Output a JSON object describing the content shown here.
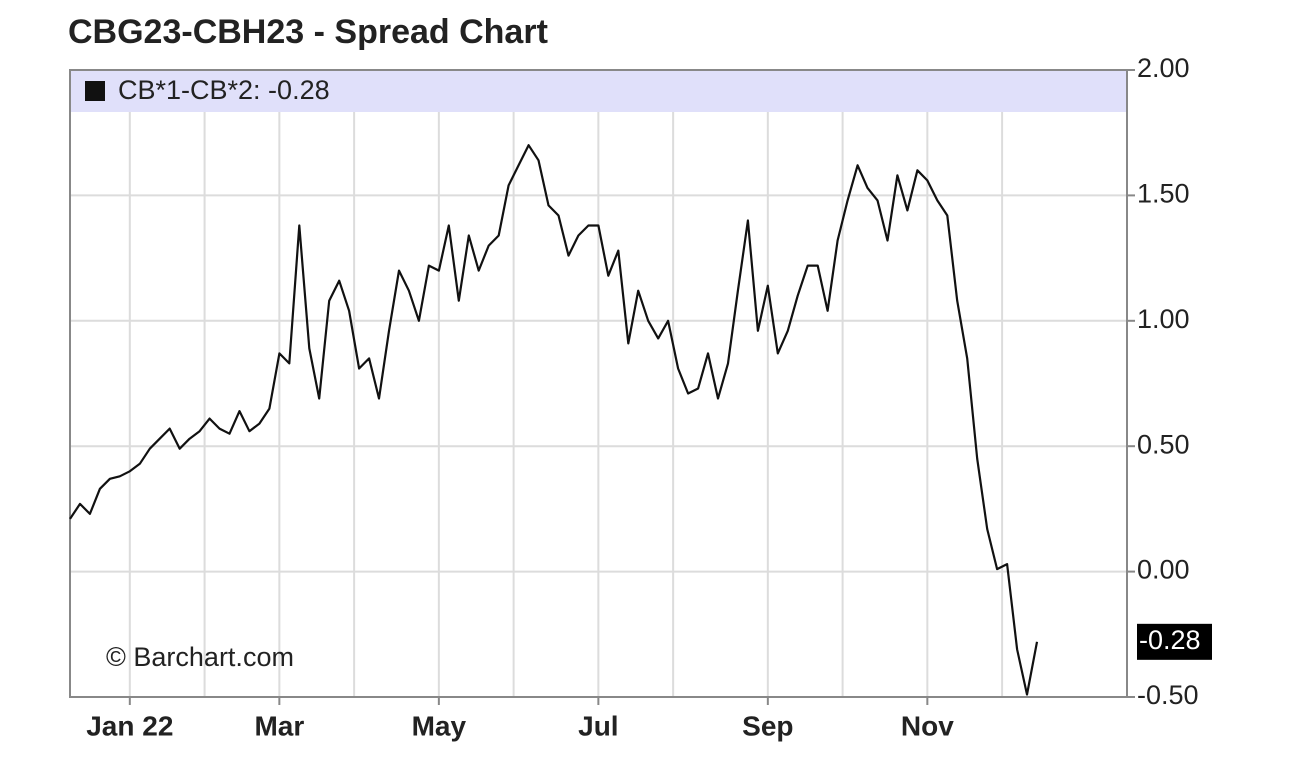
{
  "chart_data": {
    "type": "line",
    "title": "CBG23-CBH23 - Spread Chart",
    "watermark": "© Barchart.com",
    "legend_background": "#e0e0fa",
    "current_value_label": "-0.28",
    "grid": true,
    "categories": [
      null,
      null,
      null,
      null,
      null,
      null,
      "Jan 22",
      null,
      null,
      null,
      null,
      null,
      null,
      null,
      null,
      null,
      null,
      null,
      null,
      null,
      null,
      "Mar",
      null,
      null,
      null,
      null,
      null,
      null,
      null,
      null,
      null,
      null,
      null,
      null,
      null,
      null,
      null,
      "May",
      null,
      null,
      null,
      null,
      null,
      null,
      null,
      null,
      null,
      null,
      null,
      null,
      null,
      null,
      null,
      "Jul",
      null,
      null,
      null,
      null,
      null,
      null,
      null,
      null,
      null,
      null,
      null,
      null,
      null,
      null,
      null,
      null,
      "Sep",
      null,
      null,
      null,
      null,
      null,
      null,
      null,
      null,
      null,
      null,
      null,
      null,
      null,
      null,
      null,
      "Nov",
      null,
      null,
      null,
      null,
      null,
      null,
      null,
      null,
      null,
      null,
      null
    ],
    "series": [
      {
        "name": "CB*1-CB*2: -0.28",
        "color": "#111111",
        "values": [
          0.21,
          0.27,
          0.23,
          0.33,
          0.37,
          0.38,
          0.4,
          0.43,
          0.49,
          0.53,
          0.57,
          0.49,
          0.53,
          0.56,
          0.61,
          0.57,
          0.55,
          0.64,
          0.56,
          0.59,
          0.65,
          0.87,
          0.83,
          1.38,
          0.89,
          0.69,
          1.08,
          1.16,
          1.04,
          0.81,
          0.85,
          0.69,
          0.96,
          1.2,
          1.12,
          1.0,
          1.22,
          1.2,
          1.38,
          1.08,
          1.34,
          1.2,
          1.3,
          1.34,
          1.54,
          1.62,
          1.7,
          1.64,
          1.46,
          1.42,
          1.26,
          1.34,
          1.38,
          1.38,
          1.18,
          1.28,
          0.91,
          1.12,
          1.0,
          0.93,
          1.0,
          0.81,
          0.71,
          0.73,
          0.87,
          0.69,
          0.83,
          1.12,
          1.4,
          0.96,
          1.14,
          0.87,
          0.96,
          1.1,
          1.22,
          1.22,
          1.04,
          1.32,
          1.48,
          1.62,
          1.53,
          1.48,
          1.32,
          1.58,
          1.44,
          1.6,
          1.56,
          1.48,
          1.42,
          1.08,
          0.85,
          0.45,
          0.17,
          0.01,
          0.03,
          -0.31,
          -0.49,
          -0.28
        ]
      }
    ],
    "ylim": [
      -0.5,
      2.0
    ],
    "yticks": [
      {
        "value": -0.5,
        "label": "-0.50"
      },
      {
        "value": 0,
        "label": "0.00"
      },
      {
        "value": 0.5,
        "label": "0.50"
      },
      {
        "value": 1,
        "label": "1.00"
      },
      {
        "value": 1.5,
        "label": "1.50"
      },
      {
        "value": 2,
        "label": "2.00"
      }
    ]
  }
}
